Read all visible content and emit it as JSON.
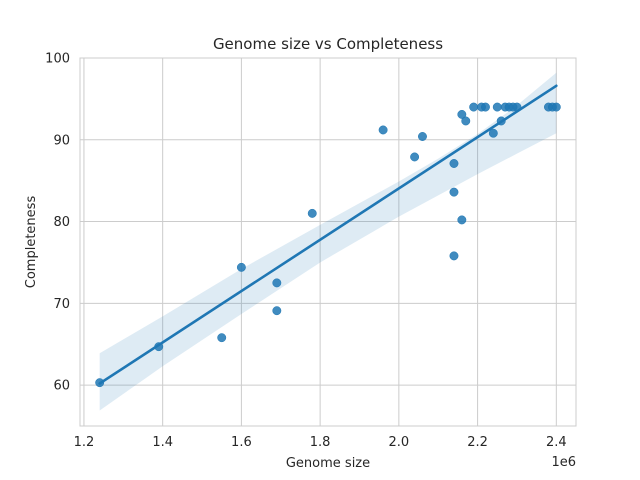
{
  "chart_data": {
    "type": "scatter",
    "title": "Genome size vs Completeness",
    "xlabel": "Genome size",
    "ylabel": "Completeness",
    "x_offset_label": "1e6",
    "xlim": [
      1.19,
      2.45
    ],
    "ylim": [
      55,
      100
    ],
    "xticks": [
      1.2,
      1.4,
      1.6,
      1.8,
      2.0,
      2.2,
      2.4
    ],
    "xtick_labels": [
      "1.2",
      "1.4",
      "1.6",
      "1.8",
      "2.0",
      "2.2",
      "2.4"
    ],
    "yticks": [
      60,
      70,
      80,
      90,
      100
    ],
    "ytick_labels": [
      "60",
      "70",
      "80",
      "90",
      "100"
    ],
    "grid": true,
    "point_color": "#1f77b4",
    "line_color": "#1f77b4",
    "band_color": "#1f77b4",
    "points": [
      {
        "x": 1.24,
        "y": 60.3
      },
      {
        "x": 1.39,
        "y": 64.7
      },
      {
        "x": 1.55,
        "y": 65.8
      },
      {
        "x": 1.6,
        "y": 74.4
      },
      {
        "x": 1.69,
        "y": 69.1
      },
      {
        "x": 1.69,
        "y": 72.5
      },
      {
        "x": 1.78,
        "y": 81.0
      },
      {
        "x": 1.96,
        "y": 91.2
      },
      {
        "x": 2.04,
        "y": 87.9
      },
      {
        "x": 2.06,
        "y": 90.4
      },
      {
        "x": 2.14,
        "y": 83.6
      },
      {
        "x": 2.14,
        "y": 75.8
      },
      {
        "x": 2.14,
        "y": 87.1
      },
      {
        "x": 2.16,
        "y": 80.2
      },
      {
        "x": 2.16,
        "y": 93.1
      },
      {
        "x": 2.17,
        "y": 92.3
      },
      {
        "x": 2.19,
        "y": 94.0
      },
      {
        "x": 2.21,
        "y": 94.0
      },
      {
        "x": 2.22,
        "y": 94.0
      },
      {
        "x": 2.24,
        "y": 90.8
      },
      {
        "x": 2.25,
        "y": 94.0
      },
      {
        "x": 2.26,
        "y": 92.3
      },
      {
        "x": 2.27,
        "y": 94.0
      },
      {
        "x": 2.28,
        "y": 94.0
      },
      {
        "x": 2.29,
        "y": 94.0
      },
      {
        "x": 2.3,
        "y": 94.0
      },
      {
        "x": 2.38,
        "y": 94.0
      },
      {
        "x": 2.39,
        "y": 94.0
      },
      {
        "x": 2.4,
        "y": 94.0
      }
    ],
    "regression": {
      "x": [
        1.24,
        2.4
      ],
      "y": [
        60.2,
        96.6
      ]
    },
    "confidence_band": {
      "x": [
        1.24,
        1.4,
        1.6,
        1.8,
        2.0,
        2.1,
        2.2,
        2.3,
        2.4
      ],
      "upper": [
        63.9,
        68.4,
        74.2,
        79.6,
        84.9,
        87.7,
        90.7,
        94.2,
        98.2
      ],
      "lower": [
        56.9,
        62.3,
        68.7,
        75.0,
        80.6,
        83.2,
        85.8,
        88.3,
        90.8
      ]
    }
  }
}
